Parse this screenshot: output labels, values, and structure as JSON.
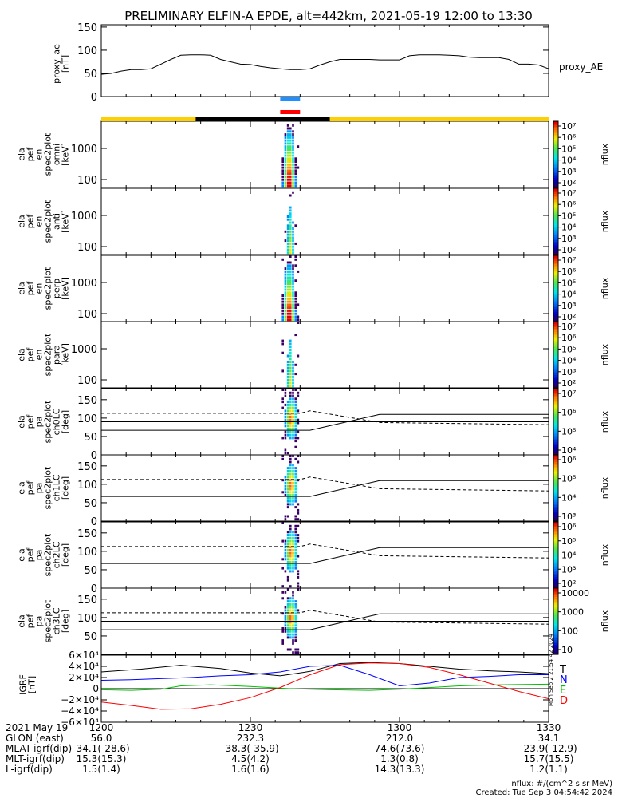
{
  "title": "PRELIMINARY ELFIN-A EPDE, alt=442km, 2021-05-19 12:00 to 13:30",
  "colors": {
    "sunlight_bar": "#ffd000",
    "shadow_bar": "#000000",
    "fast_bar": "#1e90ff",
    "science_bar": "#ff0000",
    "geo_x": "#000000",
    "geo_y": "#0000ff",
    "geo_z": "#00c000",
    "geo_d": "#ff0000",
    "dashed_line": "#000000"
  },
  "chart_data": [
    {
      "type": "line",
      "panel": "proxy_ae",
      "ylabel": "proxy_ae [nT]",
      "legend": "proxy_AE",
      "ylim": [
        0,
        155
      ],
      "yticks": [
        0,
        50,
        100,
        150
      ],
      "x_min": [
        0,
        2,
        4,
        6,
        8,
        10,
        12,
        14,
        16,
        18,
        20,
        22,
        24,
        26,
        28,
        30,
        32,
        34,
        36,
        38,
        40,
        42,
        44,
        46,
        48,
        50,
        52,
        54,
        56,
        58,
        60,
        62,
        64,
        66,
        68,
        70,
        72,
        74,
        76,
        78,
        80,
        82,
        84,
        86,
        88,
        90
      ],
      "values": [
        48,
        50,
        55,
        58,
        58,
        60,
        70,
        80,
        89,
        90,
        90,
        89,
        80,
        75,
        70,
        69,
        65,
        62,
        60,
        58,
        58,
        60,
        68,
        75,
        80,
        80,
        80,
        80,
        79,
        79,
        79,
        88,
        90,
        90,
        90,
        89,
        88,
        85,
        84,
        84,
        84,
        80,
        70,
        70,
        68,
        60
      ]
    },
    {
      "type": "heatmap",
      "panel": "ela pef en spec2plot omni [keV]",
      "ylabel": [
        "ela",
        "pef",
        "en",
        "spec2plot",
        "omni",
        "[keV]"
      ],
      "yticks": [
        "100",
        "1000"
      ],
      "colorbar_label": "nflux",
      "colorbar_ticks": [
        "10²",
        "10³",
        "10⁴",
        "10⁵",
        "10⁶",
        "10⁷"
      ],
      "colorbar_scale": "log",
      "data_window_min": [
        36,
        40
      ]
    },
    {
      "type": "heatmap",
      "panel": "ela pef en spec2plot anti [keV]",
      "ylabel": [
        "ela",
        "pef",
        "en",
        "spec2plot",
        "anti",
        "[keV]"
      ],
      "yticks": [
        "100",
        "1000"
      ],
      "colorbar_label": "nflux",
      "colorbar_ticks": [
        "10²",
        "10³",
        "10⁴",
        "10⁵",
        "10⁶",
        "10⁷"
      ],
      "colorbar_scale": "log",
      "data_window_min": [
        36,
        40
      ]
    },
    {
      "type": "heatmap",
      "panel": "ela pef en spec2plot perp [keV]",
      "ylabel": [
        "ela",
        "pef",
        "en",
        "spec2plot",
        "perp",
        "[keV]"
      ],
      "yticks": [
        "100",
        "1000"
      ],
      "colorbar_label": "nflux",
      "colorbar_ticks": [
        "10²",
        "10³",
        "10⁴",
        "10⁵",
        "10⁶",
        "10⁷"
      ],
      "colorbar_scale": "log",
      "data_window_min": [
        36,
        40
      ]
    },
    {
      "type": "heatmap",
      "panel": "ela pef en spec2plot para [keV]",
      "ylabel": [
        "ela",
        "pef",
        "en",
        "spec2plot",
        "para",
        "[keV]"
      ],
      "yticks": [
        "100",
        "1000"
      ],
      "colorbar_label": "nflux",
      "colorbar_ticks": [
        "10²",
        "10³",
        "10⁴",
        "10⁵",
        "10⁶",
        "10⁷"
      ],
      "colorbar_scale": "log",
      "data_window_min": [
        36,
        40
      ]
    },
    {
      "type": "heatmap",
      "panel": "ela pef pa spec2plot ch0LC [deg]",
      "ylabel": [
        "ela",
        "pef",
        "pa",
        "spec2plot",
        "ch0LC",
        "[deg]"
      ],
      "ylim": [
        0,
        180
      ],
      "yticks": [
        "0",
        "50",
        "100",
        "150"
      ],
      "colorbar_label": "nflux",
      "colorbar_ticks": [
        "10⁴",
        "10⁵",
        "10⁶",
        "10⁷"
      ],
      "colorbar_scale": "log",
      "loss_cone_solid_deg": [
        [
          0,
          90,
          90
        ],
        [
          0,
          90,
          67
        ],
        [
          40,
          90,
          67
        ],
        [
          42,
          90,
          60
        ],
        [
          56,
          90,
          92
        ],
        [
          90,
          90,
          92
        ]
      ],
      "anti_loss_cone_dashed_deg": [
        [
          0,
          113
        ],
        [
          40,
          113
        ],
        [
          42,
          120
        ],
        [
          56,
          88
        ],
        [
          90,
          82
        ]
      ]
    },
    {
      "type": "heatmap",
      "panel": "ela pef pa spec2plot ch1LC [deg]",
      "ylabel": [
        "ela",
        "pef",
        "pa",
        "spec2plot",
        "ch1LC",
        "[deg]"
      ],
      "ylim": [
        0,
        180
      ],
      "yticks": [
        "0",
        "50",
        "100",
        "150"
      ],
      "colorbar_label": "nflux",
      "colorbar_ticks": [
        "10³",
        "10⁴",
        "10⁵",
        "10⁶"
      ],
      "colorbar_scale": "log"
    },
    {
      "type": "heatmap",
      "panel": "ela pef pa spec2plot ch2LC [deg]",
      "ylabel": [
        "ela",
        "pef",
        "pa",
        "spec2plot",
        "ch2LC",
        "[deg]"
      ],
      "ylim": [
        0,
        180
      ],
      "yticks": [
        "0",
        "50",
        "100",
        "150"
      ],
      "colorbar_label": "nflux",
      "colorbar_ticks": [
        "10²",
        "10³",
        "10⁴",
        "10⁵",
        "10⁶"
      ],
      "colorbar_scale": "log"
    },
    {
      "type": "heatmap",
      "panel": "ela pef pa spec2plot ch3LC [deg]",
      "ylabel": [
        "ela",
        "pef",
        "pa",
        "spec2plot",
        "ch3LC",
        "[deg]"
      ],
      "ylim": [
        0,
        180
      ],
      "yticks": [
        "50",
        "100",
        "150"
      ],
      "colorbar_label": "nflux",
      "colorbar_ticks": [
        "10",
        "100",
        "1000",
        "10000"
      ],
      "colorbar_scale": "log"
    },
    {
      "type": "line",
      "panel": "IGRF [nT]",
      "ylabel": [
        "IGRF",
        "[nT]"
      ],
      "ylim": [
        -60000,
        60000
      ],
      "yticks": [
        "−6×10⁴",
        "−4×10⁴",
        "−2×10⁴",
        "0",
        "2×10⁴",
        "4×10⁴",
        "6×10⁴"
      ],
      "ytick_values": [
        -60000,
        -40000,
        -20000,
        0,
        20000,
        40000,
        60000
      ],
      "legend": [
        "T",
        "N",
        "E",
        "D"
      ],
      "series": [
        {
          "name": "T",
          "x_min": [
            0,
            8,
            16,
            24,
            30,
            36,
            42,
            48,
            54,
            60,
            66,
            72,
            78,
            84,
            90
          ],
          "values": [
            30000,
            35000,
            42000,
            36000,
            28000,
            23000,
            31000,
            45000,
            47000,
            45000,
            40000,
            35000,
            32000,
            30000,
            27000
          ]
        },
        {
          "name": "N",
          "x_min": [
            0,
            6,
            12,
            18,
            24,
            30,
            36,
            42,
            48,
            54,
            60,
            66,
            72,
            78,
            84,
            90
          ],
          "values": [
            15000,
            16000,
            18000,
            20000,
            23000,
            25000,
            30000,
            40000,
            42000,
            25000,
            5000,
            10000,
            20000,
            22000,
            25000,
            25000
          ]
        },
        {
          "name": "E",
          "x_min": [
            0,
            6,
            12,
            16,
            22,
            30,
            38,
            46,
            54,
            60,
            66,
            72,
            80,
            90
          ],
          "values": [
            -2000,
            -3000,
            -1000,
            5000,
            7000,
            4000,
            0,
            -2000,
            -3000,
            -1000,
            2000,
            5000,
            7000,
            8000
          ]
        },
        {
          "name": "D",
          "x_min": [
            0,
            6,
            12,
            18,
            24,
            30,
            36,
            42,
            48,
            54,
            60,
            66,
            72,
            78,
            84,
            90
          ],
          "values": [
            -24000,
            -30000,
            -37000,
            -36000,
            -28000,
            -16000,
            2000,
            25000,
            43000,
            46000,
            45000,
            38000,
            25000,
            10000,
            -5000,
            -18000
          ]
        }
      ]
    }
  ],
  "xaxis": {
    "tick_labels": [
      "1200",
      "1230",
      "1300",
      "1330"
    ],
    "tick_minutes": [
      0,
      30,
      60,
      90
    ],
    "rows": [
      {
        "label": "2021 May 19",
        "values": [
          "1200",
          "1230",
          "1300",
          "1330"
        ]
      },
      {
        "label": "GLON (east)",
        "values": [
          "56.0",
          "232.3",
          "212.0",
          "34.1"
        ]
      },
      {
        "label": "MLAT-igrf(dip)",
        "values": [
          "-34.1(-28.6)",
          "-38.3(-35.9)",
          "74.6(73.6)",
          "-23.9(-12.9)"
        ]
      },
      {
        "label": "MLT-igrf(dip)",
        "values": [
          "15.3(15.3)",
          "4.5(4.2)",
          "1.3(0.8)",
          "15.7(15.5)"
        ]
      },
      {
        "label": "L-igrf(dip)",
        "values": [
          "1.5(1.4)",
          "1.6(1.6)",
          "14.3(13.3)",
          "1.2(1.1)"
        ]
      }
    ]
  },
  "sunlight_bar_segments": [
    {
      "state": "sunlight",
      "from_min": 0,
      "to_min": 19
    },
    {
      "state": "shadow",
      "from_min": 19,
      "to_min": 46
    },
    {
      "state": "sunlight",
      "from_min": 46,
      "to_min": 90
    }
  ],
  "fast_survey_bar_min": [
    36,
    40
  ],
  "science_zone_bar_min": [
    36,
    40
  ],
  "side_stamp": "Mon Sep  2 21:54:42 2024",
  "footnote": {
    "units": "nflux: #/(cm^2 s sr MeV)",
    "created": "Created: Tue Sep  3 04:54:42 2024"
  }
}
